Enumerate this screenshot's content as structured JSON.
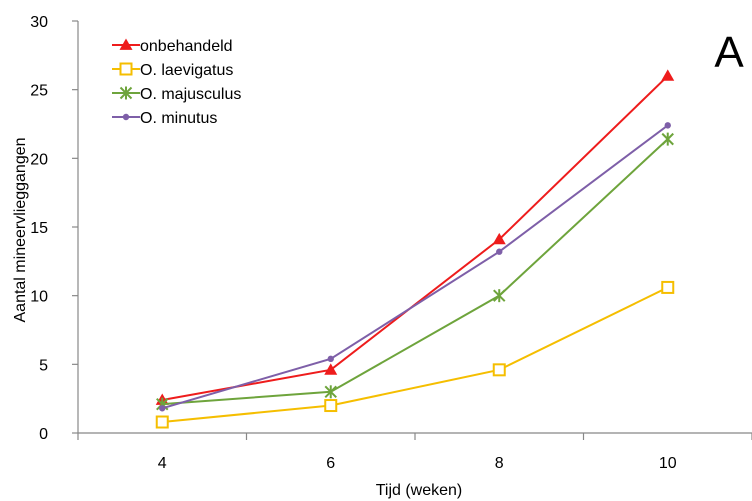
{
  "chart_data": {
    "type": "line",
    "panel_label": "A",
    "xlabel": "Tijd (weken)",
    "ylabel": "Aantal mineervlieggangen",
    "x": [
      4,
      6,
      8,
      10
    ],
    "xticks": [
      "4",
      "6",
      "8",
      "10"
    ],
    "xlim": [
      3,
      11
    ],
    "ylim": [
      0,
      30
    ],
    "yticks": [
      "0",
      "5",
      "10",
      "15",
      "20",
      "25",
      "30"
    ],
    "grid": false,
    "legend_position": "top-left",
    "series": [
      {
        "name": "onbehandeld",
        "color": "#ee1c1c",
        "marker": "triangle",
        "values": [
          2.4,
          4.6,
          14.1,
          26.0
        ]
      },
      {
        "name": "O. laevigatus",
        "color": "#f5be00",
        "marker": "open-square",
        "values": [
          0.8,
          2.0,
          4.6,
          10.6
        ]
      },
      {
        "name": "O. majusculus",
        "color": "#6ea43c",
        "marker": "star",
        "values": [
          2.1,
          3.0,
          10.0,
          21.4
        ]
      },
      {
        "name": "O. minutus",
        "color": "#7e5fa8",
        "marker": "dot",
        "values": [
          1.8,
          5.4,
          13.2,
          22.4
        ]
      }
    ]
  }
}
